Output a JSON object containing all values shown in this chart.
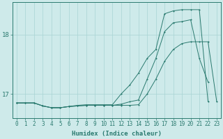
{
  "xlabel": "Humidex (Indice chaleur)",
  "bg_color": "#ceeaea",
  "line_color": "#2a7a6f",
  "grid_color": "#a8d4d4",
  "x_ticks": [
    0,
    1,
    2,
    3,
    4,
    5,
    6,
    7,
    8,
    9,
    10,
    11,
    12,
    13,
    14,
    15,
    16,
    17,
    18,
    19,
    20,
    21,
    22,
    23
  ],
  "ylim": [
    16.6,
    18.55
  ],
  "yticks": [
    17,
    18
  ],
  "series1": {
    "x": [
      0,
      1,
      2,
      3,
      4,
      5,
      6,
      7,
      8,
      9,
      10,
      11,
      12,
      13,
      14,
      15,
      16,
      17,
      18,
      19,
      20,
      21,
      22,
      23
    ],
    "y": [
      16.85,
      16.85,
      16.85,
      16.8,
      16.77,
      16.77,
      16.79,
      16.8,
      16.81,
      16.81,
      16.81,
      16.81,
      16.81,
      16.81,
      16.82,
      17.0,
      17.25,
      17.55,
      17.75,
      17.85,
      17.88,
      17.88,
      17.88,
      16.87
    ]
  },
  "series2": {
    "x": [
      0,
      1,
      2,
      3,
      4,
      5,
      6,
      7,
      8,
      9,
      10,
      11,
      12,
      13,
      14,
      15,
      16,
      17,
      18,
      19,
      20,
      21,
      22,
      23
    ],
    "y": [
      16.85,
      16.85,
      16.85,
      16.8,
      16.77,
      16.77,
      16.79,
      16.8,
      16.81,
      16.81,
      16.81,
      16.81,
      16.83,
      16.87,
      16.9,
      17.25,
      17.6,
      18.05,
      18.2,
      18.22,
      18.25,
      17.6,
      17.2,
      null
    ]
  },
  "series3": {
    "x": [
      0,
      1,
      2,
      3,
      4,
      5,
      6,
      7,
      8,
      9,
      10,
      11,
      12,
      13,
      14,
      15,
      16,
      17,
      18,
      19,
      20,
      21,
      22,
      23
    ],
    "y": [
      16.85,
      16.85,
      16.85,
      16.8,
      16.77,
      16.77,
      16.79,
      16.81,
      16.82,
      16.82,
      16.82,
      16.82,
      17.0,
      17.15,
      17.35,
      17.6,
      17.75,
      18.35,
      18.4,
      18.42,
      18.42,
      18.42,
      16.87,
      null
    ]
  },
  "xlabel_fontsize": 6.5,
  "tick_fontsize": 5.5
}
